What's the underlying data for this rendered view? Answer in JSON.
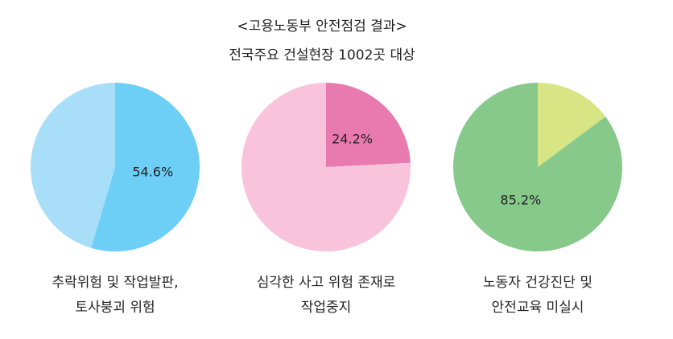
{
  "title": "<고용노동부 안전점검 결과>",
  "subtitle": "전국주요 건설현장 1002곳 대상",
  "chart_data": [
    {
      "type": "pie",
      "caption": [
        "추락위험 및 작업발판,",
        "토사붕괴 위험"
      ],
      "values": [
        54.6,
        45.4
      ],
      "value_labels": [
        "54.6%",
        null
      ],
      "colors": [
        "#6dcff6",
        "#a9def9"
      ]
    },
    {
      "type": "pie",
      "caption": [
        "심각한 사고 위험 존재로",
        "작업중지"
      ],
      "values": [
        24.2,
        75.8
      ],
      "value_labels": [
        "24.2%",
        null
      ],
      "colors": [
        "#e87aaf",
        "#f8c3db"
      ]
    },
    {
      "type": "pie",
      "caption": [
        "노동자 건강진단 및",
        "안전교육 미실시"
      ],
      "values": [
        14.8,
        85.2
      ],
      "value_labels": [
        null,
        "85.2%"
      ],
      "colors": [
        "#d7e585",
        "#86c98a"
      ]
    }
  ]
}
